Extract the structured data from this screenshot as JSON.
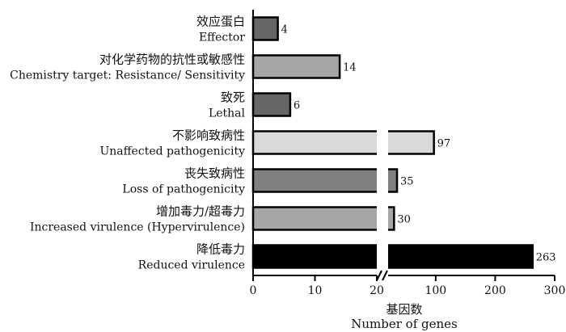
{
  "chart_data": {
    "type": "bar",
    "orientation": "horizontal",
    "broken_axis": true,
    "categories": [
      {
        "zh": "效应蛋白",
        "en": "Effector"
      },
      {
        "zh": "对化学药物的抗性或敏感性",
        "en": "Chemistry target: Resistance/ Sensitivity"
      },
      {
        "zh": "致死",
        "en": "Lethal"
      },
      {
        "zh": "不影响致病性",
        "en": "Unaffected pathogenicity"
      },
      {
        "zh": "丧失致病性",
        "en": "Loss of pathogenicity"
      },
      {
        "zh": "增加毒力/超毒力",
        "en": "Increased virulence (Hypervirulence)"
      },
      {
        "zh": "降低毒力",
        "en": "Reduced virulence"
      }
    ],
    "values": [
      4,
      14,
      6,
      97,
      35,
      30,
      263
    ],
    "value_labels": [
      "4",
      "14",
      "6",
      "97",
      "35",
      "30",
      "263"
    ],
    "colors": [
      "#666666",
      "#a6a6a6",
      "#666666",
      "#d9d9d9",
      "#808080",
      "#a6a6a6",
      "#000000"
    ],
    "segments": [
      {
        "range": [
          0,
          20
        ],
        "ticks": [
          "0",
          "10",
          "20"
        ]
      },
      {
        "range": [
          20,
          300
        ],
        "ticks": [
          "100",
          "200",
          "300"
        ]
      }
    ],
    "xlabel_zh": "基因数",
    "xlabel_en": "Number of genes",
    "grid": false
  }
}
